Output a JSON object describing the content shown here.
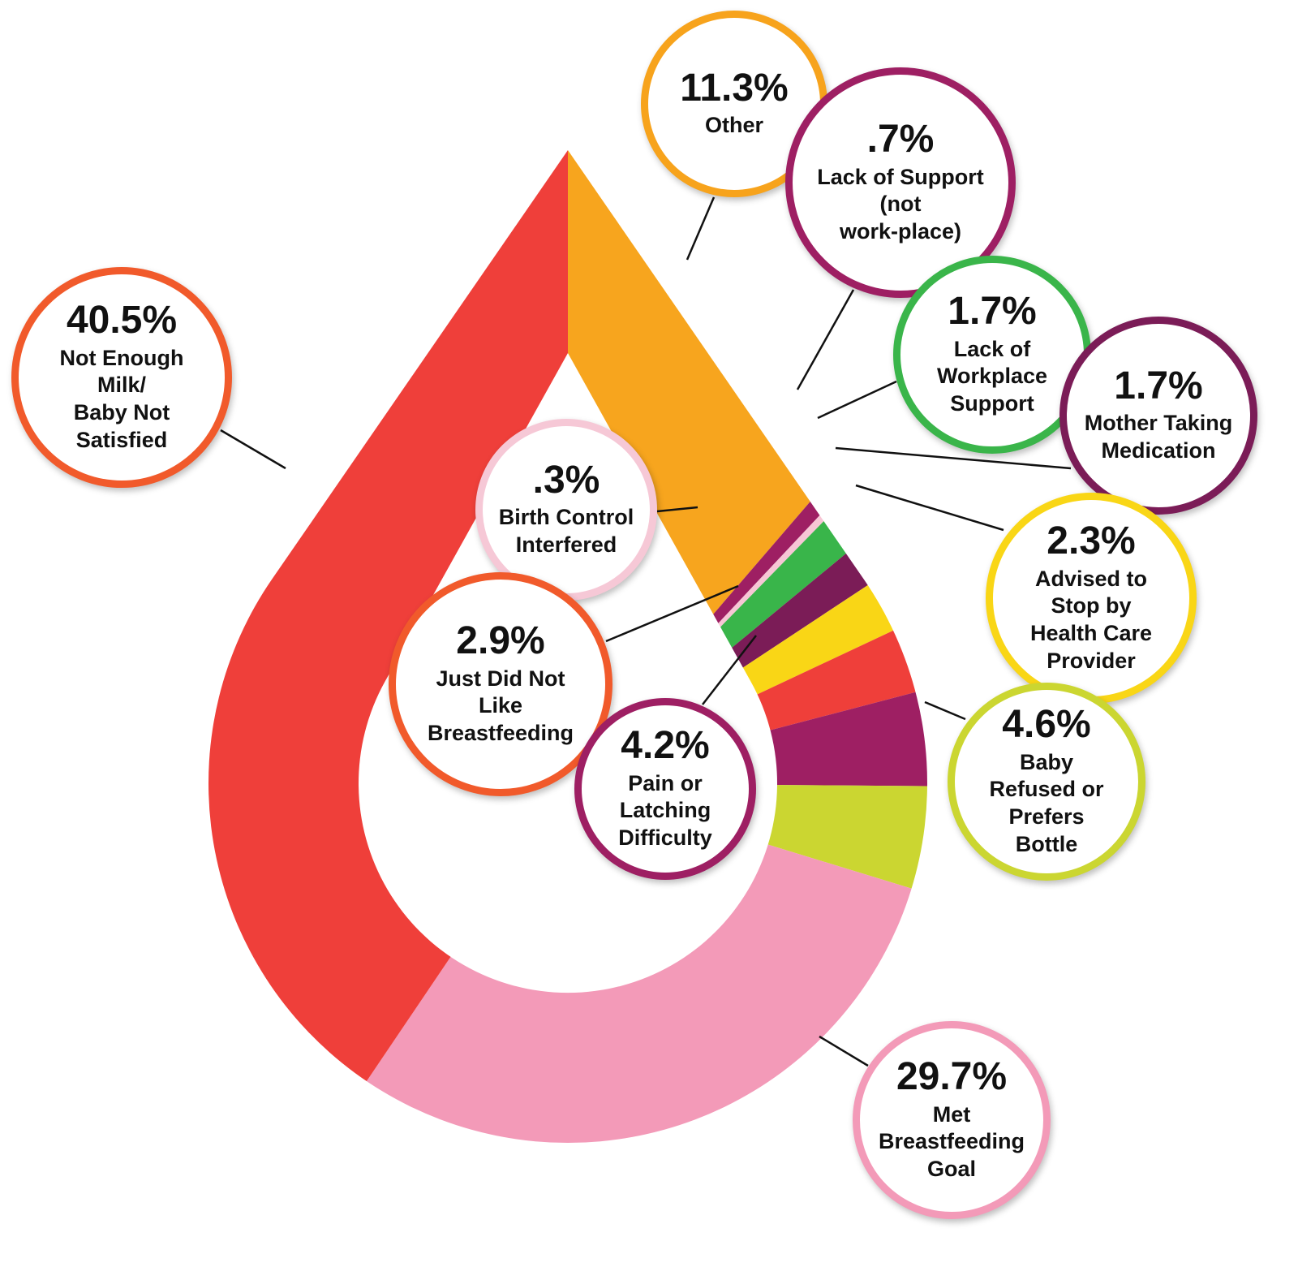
{
  "chart_data": {
    "type": "pie",
    "style": "donut (drop-shaped)",
    "slices": [
      {
        "label": "Other",
        "value": 11.3,
        "value_label": "11.3%",
        "color": "#f7a51e",
        "border": "#f7a31c"
      },
      {
        "label": "Lack of Support\n(not\nwork-place)",
        "value": 0.7,
        "value_label": ".7%",
        "color": "#9e1f63",
        "border": "#9e1f63"
      },
      {
        "label": "Birth Control\nInterfered",
        "value": 0.3,
        "value_label": ".3%",
        "color": "#f7c6d5",
        "border": "#f6c8d6"
      },
      {
        "label": "Lack of\nWorkplace\nSupport",
        "value": 1.7,
        "value_label": "1.7%",
        "color": "#39b54a",
        "border": "#3ab54a"
      },
      {
        "label": "Mother Taking\nMedication",
        "value": 1.7,
        "value_label": "1.7%",
        "color": "#7b1c57",
        "border": "#7b1c57"
      },
      {
        "label": "Advised to\nStop by\nHealth Care\nProvider",
        "value": 2.3,
        "value_label": "2.3%",
        "color": "#f9d616",
        "border": "#f9d616"
      },
      {
        "label": "Just Did Not\nLike\nBreastfeeding",
        "value": 2.9,
        "value_label": "2.9%",
        "color": "#ef3f3a",
        "border": "#f15a2b"
      },
      {
        "label": "Pain or\nLatching\nDifficulty",
        "value": 4.2,
        "value_label": "4.2%",
        "color": "#9e1f63",
        "border": "#9e1f63"
      },
      {
        "label": "Baby\nRefused or\nPrefers\nBottle",
        "value": 4.6,
        "value_label": "4.6%",
        "color": "#cbd631",
        "border": "#cbd631"
      },
      {
        "label": "Met\nBreastfeeding\nGoal",
        "value": 29.7,
        "value_label": "29.7%",
        "color": "#f39ab8",
        "border": "#f39ab8"
      },
      {
        "label": "Not Enough\nMilk/\nBaby Not\nSatisfied",
        "value": 40.5,
        "value_label": "40.5%",
        "color": "#ef3f3a",
        "border": "#f15a2b"
      }
    ]
  }
}
